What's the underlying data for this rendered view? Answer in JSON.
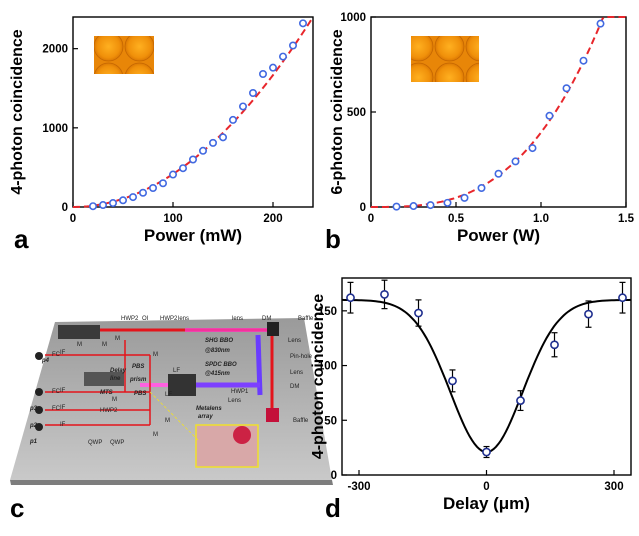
{
  "panels": {
    "a": "a",
    "b": "b",
    "c": "c",
    "d": "d"
  },
  "chart_data": [
    {
      "id": "a",
      "type": "scatter",
      "xlabel": "Power (mW)",
      "ylabel": "4-photon coincidence",
      "xlim": [
        0,
        240
      ],
      "ylim": [
        0,
        2400
      ],
      "xticks": [
        0,
        100,
        200
      ],
      "yticks": [
        0,
        1000,
        2000
      ],
      "x": [
        20,
        30,
        40,
        50,
        60,
        70,
        80,
        90,
        100,
        110,
        120,
        130,
        140,
        150,
        160,
        170,
        180,
        190,
        200,
        210,
        220,
        230
      ],
      "y": [
        10,
        25,
        50,
        85,
        125,
        180,
        240,
        300,
        410,
        490,
        600,
        710,
        810,
        880,
        1100,
        1270,
        1440,
        1680,
        1760,
        1900,
        2040,
        2320
      ],
      "fit": {
        "style": "dashed",
        "color": "#e8262b",
        "curve": "quadratic",
        "x": [
          0,
          60,
          120,
          180,
          240
        ],
        "y": [
          0,
          150,
          600,
          1350,
          2400
        ]
      },
      "marker_color": "#4169e1",
      "inset": "image"
    },
    {
      "id": "b",
      "type": "scatter",
      "xlabel": "Power (W)",
      "ylabel": "6-photon coincidence",
      "xlim": [
        0,
        1.5
      ],
      "ylim": [
        0,
        1000
      ],
      "xticks": [
        0,
        0.5,
        1.0,
        1.5
      ],
      "xtick_labels": [
        "0",
        "0.5",
        "1.0",
        "1.5"
      ],
      "yticks": [
        0,
        500,
        1000
      ],
      "x": [
        0.15,
        0.25,
        0.35,
        0.45,
        0.55,
        0.65,
        0.75,
        0.85,
        0.95,
        1.05,
        1.15,
        1.25,
        1.35
      ],
      "y": [
        2,
        5,
        10,
        22,
        48,
        100,
        175,
        240,
        310,
        480,
        625,
        770,
        965
      ],
      "fit": {
        "style": "dashed",
        "color": "#e8262b",
        "curve": "cubic",
        "x": [
          0,
          0.5,
          1.0,
          1.35,
          1.4
        ],
        "y": [
          0,
          38,
          385,
          965,
          1070
        ]
      },
      "marker_color": "#4169e1",
      "inset": "image"
    },
    {
      "id": "d",
      "type": "scatter",
      "xlabel": "Delay (μm)",
      "ylabel": "4-photon coincidence",
      "xlim": [
        -340,
        340
      ],
      "ylim": [
        0,
        180
      ],
      "xticks": [
        -300,
        0,
        300
      ],
      "yticks": [
        0,
        50,
        100,
        150
      ],
      "x": [
        -320,
        -240,
        -160,
        -80,
        0,
        80,
        160,
        240,
        320
      ],
      "y": [
        162,
        165,
        148,
        86,
        21,
        68,
        119,
        147,
        162
      ],
      "err": [
        14,
        13,
        12,
        10,
        5,
        9,
        11,
        12,
        14
      ],
      "fit": {
        "style": "solid",
        "color": "#000000",
        "curve": "gaussian-dip",
        "baseline": 160,
        "dip_min": 21,
        "center": 0,
        "sigma": 85
      },
      "marker_color": "#1f2f8f"
    }
  ],
  "setup": {
    "labels": [
      "HWP2",
      "OI",
      "HWP2",
      "lens",
      "lens",
      "DM",
      "Baffle",
      "SHG BBO",
      "@830nm",
      "SPDC BBO",
      "@415nm",
      "Lens",
      "Pin-hole",
      "Lens",
      "DM",
      "HWP1",
      "Lens",
      "Baffle",
      "Metalens",
      "array",
      "LF",
      "LF",
      "prism",
      "PBS",
      "M",
      "M",
      "M",
      "M",
      "M",
      "M",
      "MTS",
      "Delay",
      "line",
      "PBS",
      "FC",
      "FC",
      "FC",
      "IF",
      "IF",
      "IF",
      "IF",
      "p4",
      "p3",
      "p2",
      "p1",
      "HWP2",
      "QWP",
      "QWP",
      "M"
    ]
  }
}
